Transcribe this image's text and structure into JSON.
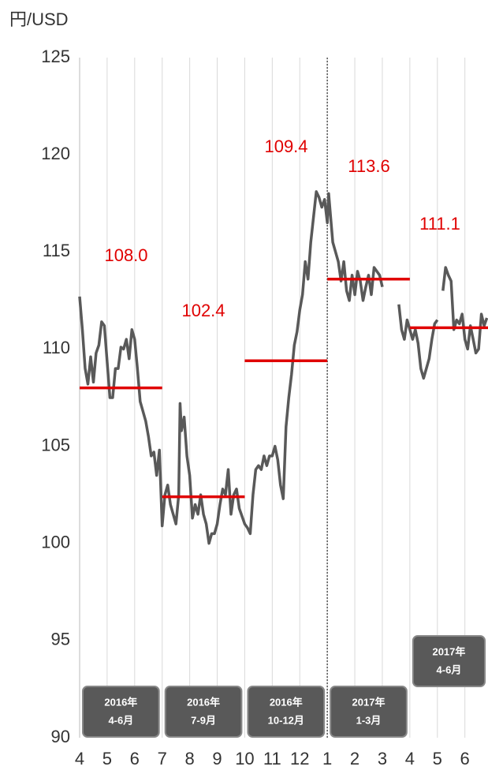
{
  "chart_data": {
    "type": "line",
    "y_label": "円/USD",
    "ylim": [
      90,
      125
    ],
    "yticks": [
      90,
      95,
      100,
      105,
      110,
      115,
      120,
      125
    ],
    "xlim": [
      0,
      14.84
    ],
    "xticks": [
      {
        "value": 0,
        "label": "4"
      },
      {
        "value": 1,
        "label": "5"
      },
      {
        "value": 2,
        "label": "6"
      },
      {
        "value": 3,
        "label": "7"
      },
      {
        "value": 4,
        "label": "8"
      },
      {
        "value": 5,
        "label": "9"
      },
      {
        "value": 6,
        "label": "10"
      },
      {
        "value": 7,
        "label": "11"
      },
      {
        "value": 8,
        "label": "12"
      },
      {
        "value": 9,
        "label": "1"
      },
      {
        "value": 10,
        "label": "2"
      },
      {
        "value": 11,
        "label": "3"
      },
      {
        "value": 12,
        "label": "4"
      },
      {
        "value": 13,
        "label": "5"
      },
      {
        "value": 14,
        "label": "6"
      }
    ],
    "grid": true,
    "year_divider": 9,
    "series": [
      {
        "color": "#595959",
        "x": [
          0,
          0.1,
          0.2,
          0.3,
          0.4,
          0.5,
          0.6,
          0.7,
          0.8,
          0.9,
          1.1,
          1.2,
          1.3,
          1.4,
          1.5,
          1.6,
          1.7,
          1.8,
          1.9,
          2.0,
          2.1,
          2.2,
          2.3,
          2.4,
          2.5,
          2.6,
          2.7,
          2.8,
          2.9,
          3.0,
          3.1,
          3.2,
          3.3,
          3.4,
          3.5,
          3.6,
          3.65,
          3.7,
          3.8,
          3.9,
          4.0,
          4.1,
          4.2,
          4.3,
          4.4,
          4.5,
          4.6,
          4.7,
          4.8,
          4.9,
          5.0,
          5.1,
          5.2,
          5.3,
          5.4,
          5.5,
          5.6,
          5.7,
          5.8,
          6.0,
          6.1,
          6.2,
          6.3,
          6.4,
          6.5,
          6.6,
          6.7,
          6.8,
          6.9,
          7.0,
          7.1,
          7.2,
          7.3,
          7.4,
          7.5,
          7.6,
          7.7,
          7.8,
          7.9,
          8.0,
          8.1,
          8.2,
          8.3,
          8.4,
          8.6,
          8.7,
          8.8,
          8.9,
          9.0,
          9.05,
          9.2,
          9.3,
          9.4,
          9.5,
          9.6,
          9.7,
          9.8,
          9.9,
          10.0,
          10.1,
          10.2,
          10.3,
          10.4,
          10.5,
          10.6,
          10.7,
          10.8,
          10.9,
          11.0,
          11.3,
          11.6,
          11.7,
          11.8,
          11.9,
          12.0,
          12.1,
          12.2,
          12.3,
          12.4,
          12.5,
          12.6,
          12.7,
          12.8,
          12.9,
          13.0,
          13.1,
          13.2,
          13.3,
          13.4,
          13.5,
          13.6,
          13.7,
          13.8,
          13.9,
          14.0,
          14.1,
          14.2,
          14.3,
          14.4,
          14.5,
          14.6,
          14.7,
          14.8
        ],
        "values": [
          112.7,
          111,
          109,
          108.2,
          109.6,
          108.3,
          109.8,
          110.2,
          111.4,
          111.2,
          107.5,
          107.5,
          109,
          109,
          110.1,
          110,
          110.5,
          109.5,
          111,
          110.5,
          109,
          107.3,
          106.8,
          106.3,
          105.5,
          104.5,
          104.7,
          103.5,
          104.8,
          100.9,
          102.5,
          103,
          102,
          101.5,
          101,
          102.5,
          107.2,
          105.8,
          106.5,
          104.5,
          103.5,
          101.3,
          102,
          101.5,
          102.5,
          101.5,
          101,
          100,
          100.5,
          100.5,
          101,
          102,
          102.8,
          102.5,
          103.8,
          101.5,
          102.5,
          102.8,
          101.8,
          101,
          100.8,
          100.5,
          102.5,
          103.8,
          104,
          103.8,
          104.5,
          104,
          104.5,
          104.5,
          105,
          104.3,
          103,
          102.3,
          106,
          107.5,
          108.7,
          110.2,
          110.9,
          112,
          112.8,
          114.5,
          113.6,
          115.5,
          118.1,
          117.8,
          117.3,
          117.7,
          116.5,
          118,
          115.5,
          115,
          114.5,
          113.5,
          114.5,
          113,
          112.5,
          113.8,
          112.8,
          114,
          113.5,
          112.5,
          113.2,
          113.8,
          112.8,
          114.2,
          114,
          113.8,
          113.2,
          null,
          112.3,
          111,
          110.5,
          111.5,
          111,
          110.5,
          111,
          110.3,
          109,
          108.5,
          109,
          109.5,
          110.5,
          111.3,
          111.5,
          null,
          113,
          114.2,
          113.8,
          113.5,
          111,
          111.5,
          111.3,
          111.8,
          110.5,
          110,
          111.2,
          110.5,
          109.8,
          110,
          111.8,
          111.2,
          111.6
        ]
      }
    ],
    "average_color": "#e00000",
    "quarters": [
      {
        "year": "2016年",
        "months": "4-6月",
        "start": 0,
        "end": 3,
        "average": 108.0,
        "average_label": "108.0"
      },
      {
        "year": "2016年",
        "months": "7-9月",
        "start": 3,
        "end": 6,
        "average": 102.4,
        "average_label": "102.4"
      },
      {
        "year": "2016年",
        "months": "10-12月",
        "start": 6,
        "end": 9,
        "average": 109.4,
        "average_label": "109.4"
      },
      {
        "year": "2017年",
        "months": "1-3月",
        "start": 9,
        "end": 12,
        "average": 113.6,
        "average_label": "113.6"
      },
      {
        "year": "2017年",
        "months": "4-6月",
        "start": 12,
        "end": 14.84,
        "average": 111.1,
        "average_label": "111.1"
      }
    ]
  }
}
